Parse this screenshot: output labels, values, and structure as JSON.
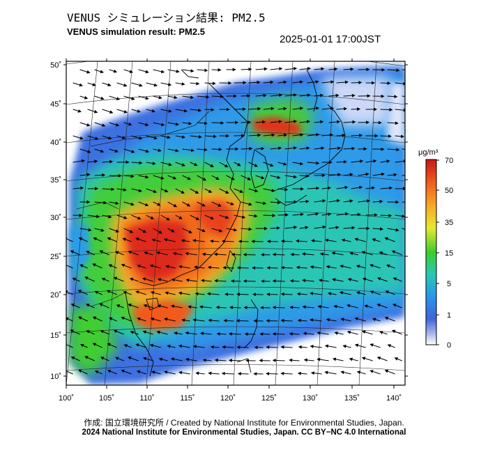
{
  "header": {
    "title_jp": "VENUS シミュレーション結果: PM2.5",
    "title_en": "VENUS simulation result: PM2.5",
    "timestamp": "2025-01-01 17:00JST"
  },
  "map": {
    "lon_ticks": [
      "100˚",
      "105˚",
      "110˚",
      "115˚",
      "120˚",
      "125˚",
      "130˚",
      "135˚",
      "140˚"
    ],
    "lat_ticks": [
      "10˚",
      "15˚",
      "20˚",
      "25˚",
      "30˚",
      "35˚",
      "40˚",
      "45˚",
      "50˚"
    ],
    "lon_range": [
      100,
      142
    ],
    "lat_range": [
      9,
      50
    ],
    "field": "PM2.5 concentration",
    "background_color": "#ffffff",
    "land_outline_color": "#000000",
    "wind_vectors": "black arrows"
  },
  "colorbar": {
    "unit_label": "μg/m³",
    "ticks": [
      "70",
      "50",
      "35",
      "15",
      "5",
      "1",
      "0"
    ],
    "colors": [
      "#d31b1b",
      "#f06a1f",
      "#f5b62b",
      "#d9e92f",
      "#38cc2e",
      "#28c9a8",
      "#2a9bea",
      "#3c68dc",
      "#b9c2ec",
      "#ffffff"
    ]
  },
  "footer": {
    "credit_line": "作成: 国立環境研究所 / Created by National Institute for Environmental Studies, Japan.",
    "copyright_line": "2024 National Institute for Environmental Studies, Japan. CC BY−NC 4.0 International"
  }
}
